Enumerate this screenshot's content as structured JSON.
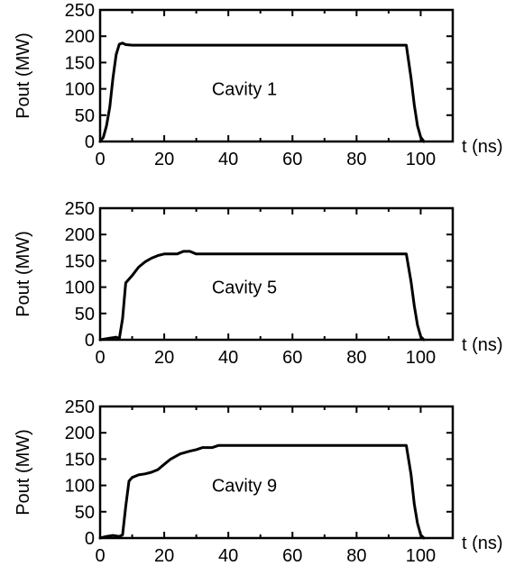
{
  "chart_data": [
    {
      "type": "line",
      "label": "Cavity 1",
      "ylabel": "Pout (MW)",
      "xlabel": "t (ns)",
      "xlim": [
        0,
        110
      ],
      "ylim": [
        0,
        250
      ],
      "xticks": [
        "0",
        "20",
        "40",
        "60",
        "80",
        "100"
      ],
      "yticks": [
        "0",
        "50",
        "100",
        "150",
        "200",
        "250"
      ],
      "series": [
        {
          "x": [
            0,
            1,
            2,
            3,
            4,
            5,
            6,
            7,
            8,
            10,
            20,
            40,
            60,
            80,
            95.5,
            97,
            98,
            99,
            100,
            101
          ],
          "y": [
            0,
            8,
            30,
            65,
            120,
            165,
            185,
            187,
            184,
            183,
            183,
            183,
            183,
            183,
            183,
            120,
            70,
            30,
            8,
            0
          ]
        }
      ]
    },
    {
      "type": "line",
      "label": "Cavity 5",
      "ylabel": "Pout (MW)",
      "xlabel": "t (ns)",
      "xlim": [
        0,
        110
      ],
      "ylim": [
        0,
        250
      ],
      "xticks": [
        "0",
        "20",
        "40",
        "60",
        "80",
        "100"
      ],
      "yticks": [
        "0",
        "50",
        "100",
        "150",
        "200",
        "250"
      ],
      "series": [
        {
          "x": [
            0,
            3,
            5,
            6,
            7,
            8,
            10,
            12,
            14,
            16,
            18,
            20,
            24,
            26,
            28,
            30,
            40,
            60,
            80,
            95.5,
            97,
            98,
            99,
            100,
            101
          ],
          "y": [
            0,
            3,
            5,
            2,
            40,
            108,
            122,
            138,
            148,
            155,
            160,
            163,
            163,
            168,
            168,
            163,
            163,
            163,
            163,
            163,
            110,
            65,
            28,
            6,
            0
          ]
        }
      ]
    },
    {
      "type": "line",
      "label": "Cavity 9",
      "ylabel": "Pout (MW)",
      "xlabel": "t (ns)",
      "xlim": [
        0,
        110
      ],
      "ylim": [
        0,
        250
      ],
      "xticks": [
        "0",
        "20",
        "40",
        "60",
        "80",
        "100"
      ],
      "yticks": [
        "0",
        "50",
        "100",
        "150",
        "200",
        "250"
      ],
      "series": [
        {
          "x": [
            0,
            2,
            4,
            6,
            7,
            8,
            9,
            10,
            12,
            14,
            16,
            18,
            20,
            22,
            25,
            28,
            30,
            32,
            35,
            37,
            40,
            60,
            80,
            95.5,
            97,
            98,
            99,
            100,
            101
          ],
          "y": [
            0,
            3,
            5,
            3,
            6,
            60,
            108,
            115,
            120,
            122,
            125,
            130,
            140,
            150,
            160,
            165,
            168,
            172,
            172,
            176,
            176,
            176,
            176,
            176,
            120,
            65,
            28,
            6,
            0
          ]
        }
      ]
    }
  ]
}
